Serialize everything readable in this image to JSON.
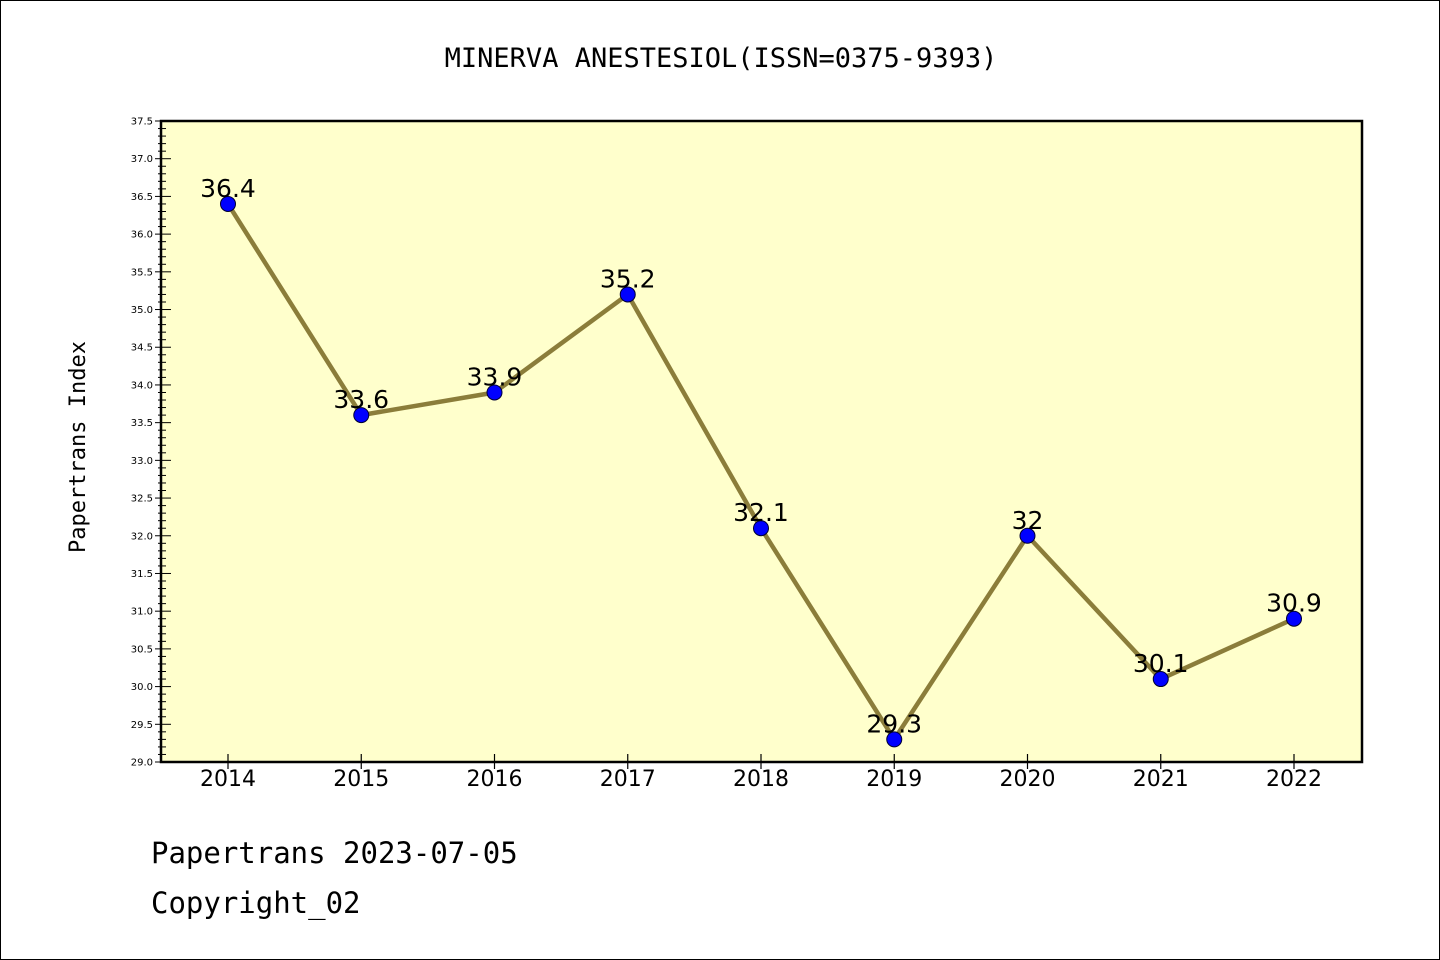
{
  "colors": {
    "plot_background": "#ffffcc",
    "line": "#8b7d3a",
    "marker": "#0000ff"
  },
  "chart_data": {
    "type": "line",
    "title": "MINERVA ANESTESIOL(ISSN=0375-9393)",
    "ylabel": "Papertrans Index",
    "xlabel": "",
    "categories": [
      "2014",
      "2015",
      "2016",
      "2017",
      "2018",
      "2019",
      "2020",
      "2021",
      "2022"
    ],
    "values": [
      36.4,
      33.6,
      33.9,
      35.2,
      32.1,
      29.3,
      32,
      30.1,
      30.9
    ],
    "value_labels": [
      "36.4",
      "33.6",
      "33.9",
      "35.2",
      "32.1",
      "29.3",
      "32",
      "30.1",
      "30.9"
    ],
    "ylim": [
      29.0,
      37.5
    ],
    "yticks": [
      "29.0",
      "29.5",
      "30.0",
      "30.5",
      "31.0",
      "31.5",
      "32.0",
      "32.5",
      "33.0",
      "33.5",
      "34.0",
      "34.5",
      "35.0",
      "35.5",
      "36.0",
      "36.5",
      "37.0",
      "37.5"
    ],
    "grid": false,
    "legend": "none"
  },
  "footer": {
    "line1": "Papertrans 2023-07-05",
    "line2": "Copyright_02"
  }
}
